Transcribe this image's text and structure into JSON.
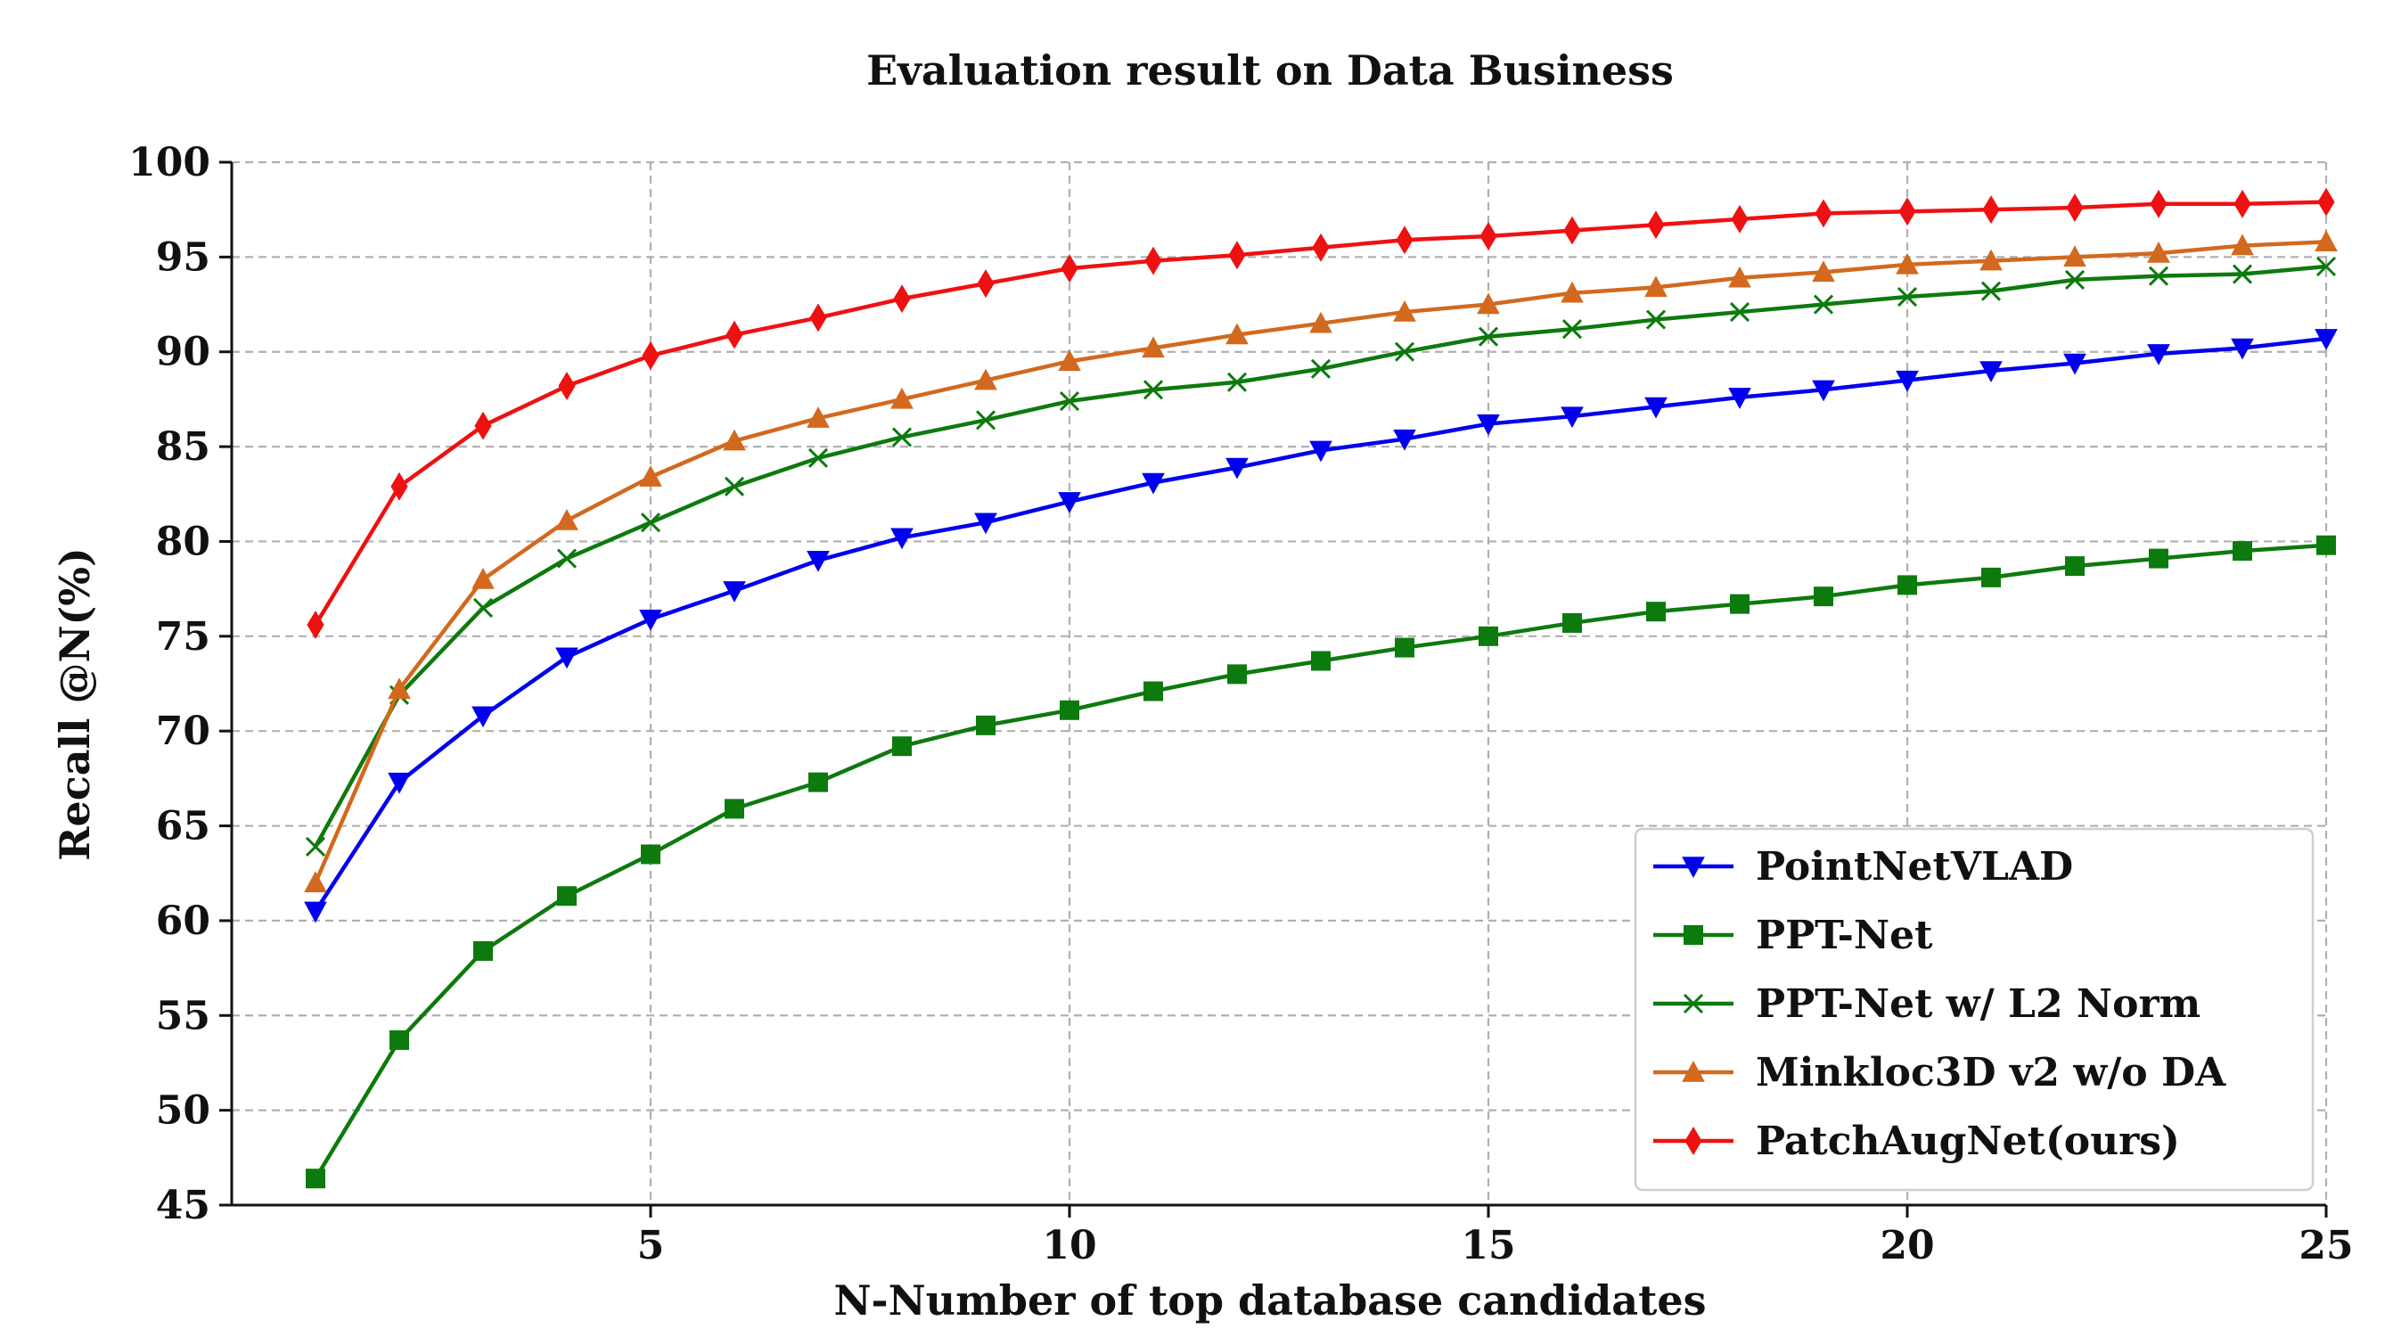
{
  "chart_data": {
    "type": "line",
    "title": "Evaluation result on Data Business",
    "xlabel": "N-Number of top database candidates",
    "ylabel": "Recall @N(%)",
    "xlim": [
      0,
      25
    ],
    "ylim": [
      45,
      100
    ],
    "xticks": [
      5,
      10,
      15,
      20,
      25
    ],
    "yticks": [
      45,
      50,
      55,
      60,
      65,
      70,
      75,
      80,
      85,
      90,
      95,
      100
    ],
    "grid": true,
    "legend_position": "lower-right",
    "x": [
      1,
      2,
      3,
      4,
      5,
      6,
      7,
      8,
      9,
      10,
      11,
      12,
      13,
      14,
      15,
      16,
      17,
      18,
      19,
      20,
      21,
      22,
      23,
      24,
      25
    ],
    "series": [
      {
        "name": "PointNetVLAD",
        "color": "#0000ee",
        "marker": "triangle-down",
        "values": [
          60.5,
          67.3,
          70.8,
          73.9,
          75.9,
          77.4,
          79.0,
          80.2,
          81.0,
          82.1,
          83.1,
          83.9,
          84.8,
          85.4,
          86.2,
          86.6,
          87.1,
          87.6,
          88.0,
          88.5,
          89.0,
          89.4,
          89.9,
          90.2,
          90.7
        ]
      },
      {
        "name": "PPT-Net",
        "color": "#0d7a0d",
        "marker": "square",
        "values": [
          46.4,
          53.7,
          58.4,
          61.3,
          63.5,
          65.9,
          67.3,
          69.2,
          70.3,
          71.1,
          72.1,
          73.0,
          73.7,
          74.4,
          75.0,
          75.7,
          76.3,
          76.7,
          77.1,
          77.7,
          78.1,
          78.7,
          79.1,
          79.5,
          79.8
        ]
      },
      {
        "name": "PPT-Net w/ L2 Norm",
        "color": "#0d7a0d",
        "marker": "x",
        "values": [
          63.9,
          71.9,
          76.5,
          79.1,
          81.0,
          82.9,
          84.4,
          85.5,
          86.4,
          87.4,
          88.0,
          88.4,
          89.1,
          90.0,
          90.8,
          91.2,
          91.7,
          92.1,
          92.5,
          92.9,
          93.2,
          93.8,
          94.0,
          94.1,
          94.5
        ]
      },
      {
        "name": "Minkloc3D v2 w/o DA",
        "color": "#d2691e",
        "marker": "triangle-up",
        "values": [
          62.0,
          72.2,
          78.0,
          81.1,
          83.4,
          85.3,
          86.5,
          87.5,
          88.5,
          89.5,
          90.2,
          90.9,
          91.5,
          92.1,
          92.5,
          93.1,
          93.4,
          93.9,
          94.2,
          94.6,
          94.8,
          95.0,
          95.2,
          95.6,
          95.8
        ]
      },
      {
        "name": "PatchAugNet(ours)",
        "color": "#ee1111",
        "marker": "diamond",
        "values": [
          75.6,
          82.9,
          86.1,
          88.2,
          89.8,
          90.9,
          91.8,
          92.8,
          93.6,
          94.4,
          94.8,
          95.1,
          95.5,
          95.9,
          96.1,
          96.4,
          96.7,
          97.0,
          97.3,
          97.4,
          97.5,
          97.6,
          97.8,
          97.8,
          97.9
        ]
      }
    ]
  }
}
